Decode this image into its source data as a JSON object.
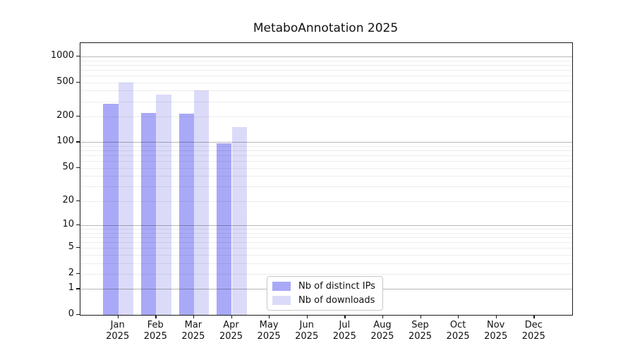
{
  "title": "MetaboAnnotation 2025",
  "chart_data": {
    "type": "bar",
    "title": "MetaboAnnotation 2025",
    "scale": "log1p",
    "grid": true,
    "categories": [
      "Jan",
      "Feb",
      "Mar",
      "Apr",
      "May",
      "Jun",
      "Jul",
      "Aug",
      "Sep",
      "Oct",
      "Nov",
      "Dec"
    ],
    "category_year": "2025",
    "series": [
      {
        "name": "Nb of distinct IPs",
        "color": "#a9a9f7",
        "values": [
          280,
          220,
          215,
          97,
          null,
          null,
          null,
          null,
          null,
          null,
          null,
          null
        ]
      },
      {
        "name": "Nb of downloads",
        "color": "#dbdbf9",
        "values": [
          500,
          360,
          400,
          150,
          null,
          null,
          null,
          null,
          null,
          null,
          null,
          null
        ]
      }
    ],
    "y_ticks": [
      0,
      1,
      2,
      5,
      10,
      20,
      50,
      100,
      200,
      500,
      1000
    ],
    "ylim": [
      0,
      1400
    ],
    "xlabel": "",
    "ylabel": "",
    "legend_position": "lower center"
  }
}
